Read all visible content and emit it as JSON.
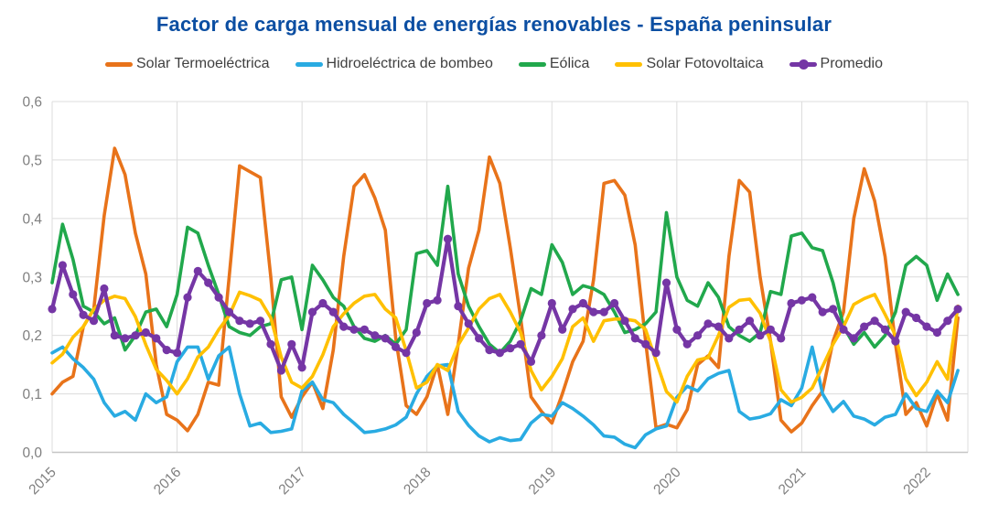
{
  "title": {
    "text": "Factor de carga mensual de energías renovables - España peninsular",
    "color": "#0B4EA2"
  },
  "axes": {
    "y_unit": "factor de carga (0-1, coma decimal)",
    "x_unit": "mes (enero 2015 - abril 2022)"
  },
  "chart_data": {
    "type": "line",
    "title": "Factor de carga mensual de energías renovables - España peninsular",
    "x_start": "2015-01",
    "x_end": "2022-04",
    "points_per_series": 88,
    "months_per_year": 12,
    "x_tick_labels": [
      "2015",
      "2016",
      "2017",
      "2018",
      "2019",
      "2020",
      "2021",
      "2022"
    ],
    "y_tick_labels": [
      "0,0",
      "0,1",
      "0,2",
      "0,3",
      "0,4",
      "0,5",
      "0,6"
    ],
    "ylim": [
      0,
      0.6
    ],
    "grid": true,
    "legend_position": "top",
    "series": [
      {
        "name": "Solar Termoeléctrica",
        "color": "#E8731A",
        "marker": "none",
        "values": [
          0.1,
          0.12,
          0.13,
          0.215,
          0.245,
          0.405,
          0.52,
          0.475,
          0.375,
          0.305,
          0.15,
          0.065,
          0.055,
          0.037,
          0.065,
          0.12,
          0.115,
          0.3,
          0.49,
          0.48,
          0.47,
          0.3,
          0.095,
          0.06,
          0.095,
          0.12,
          0.075,
          0.175,
          0.335,
          0.455,
          0.475,
          0.435,
          0.38,
          0.195,
          0.08,
          0.065,
          0.095,
          0.15,
          0.065,
          0.185,
          0.315,
          0.38,
          0.505,
          0.46,
          0.35,
          0.23,
          0.095,
          0.07,
          0.05,
          0.1,
          0.155,
          0.19,
          0.295,
          0.46,
          0.465,
          0.44,
          0.355,
          0.19,
          0.042,
          0.048,
          0.042,
          0.073,
          0.15,
          0.165,
          0.145,
          0.335,
          0.465,
          0.445,
          0.3,
          0.19,
          0.055,
          0.035,
          0.05,
          0.08,
          0.105,
          0.19,
          0.24,
          0.4,
          0.485,
          0.43,
          0.335,
          0.185,
          0.065,
          0.085,
          0.045,
          0.1,
          0.055,
          0.23
        ]
      },
      {
        "name": "Hidroeléctrica de bombeo",
        "color": "#29ABE2",
        "marker": "none",
        "values": [
          0.17,
          0.18,
          0.16,
          0.145,
          0.125,
          0.085,
          0.062,
          0.07,
          0.055,
          0.1,
          0.085,
          0.095,
          0.155,
          0.18,
          0.18,
          0.125,
          0.165,
          0.18,
          0.1,
          0.045,
          0.05,
          0.034,
          0.036,
          0.04,
          0.105,
          0.12,
          0.09,
          0.085,
          0.065,
          0.05,
          0.034,
          0.036,
          0.04,
          0.047,
          0.06,
          0.1,
          0.13,
          0.148,
          0.15,
          0.07,
          0.046,
          0.028,
          0.018,
          0.025,
          0.02,
          0.022,
          0.05,
          0.065,
          0.062,
          0.085,
          0.075,
          0.062,
          0.047,
          0.028,
          0.026,
          0.014,
          0.008,
          0.03,
          0.04,
          0.045,
          0.094,
          0.113,
          0.105,
          0.126,
          0.135,
          0.14,
          0.07,
          0.057,
          0.06,
          0.066,
          0.09,
          0.08,
          0.11,
          0.18,
          0.1,
          0.07,
          0.087,
          0.062,
          0.057,
          0.047,
          0.06,
          0.065,
          0.1,
          0.075,
          0.07,
          0.105,
          0.085,
          0.14
        ]
      },
      {
        "name": "Eólica",
        "color": "#21A84C",
        "marker": "none",
        "values": [
          0.29,
          0.39,
          0.33,
          0.25,
          0.24,
          0.22,
          0.23,
          0.175,
          0.2,
          0.24,
          0.245,
          0.215,
          0.27,
          0.385,
          0.375,
          0.32,
          0.27,
          0.215,
          0.205,
          0.2,
          0.215,
          0.22,
          0.295,
          0.3,
          0.21,
          0.32,
          0.295,
          0.265,
          0.25,
          0.215,
          0.195,
          0.19,
          0.2,
          0.185,
          0.21,
          0.34,
          0.345,
          0.32,
          0.455,
          0.305,
          0.25,
          0.215,
          0.185,
          0.17,
          0.19,
          0.225,
          0.28,
          0.27,
          0.355,
          0.325,
          0.27,
          0.285,
          0.28,
          0.27,
          0.24,
          0.205,
          0.21,
          0.22,
          0.24,
          0.41,
          0.3,
          0.26,
          0.25,
          0.29,
          0.265,
          0.215,
          0.2,
          0.19,
          0.205,
          0.275,
          0.27,
          0.37,
          0.375,
          0.35,
          0.345,
          0.29,
          0.215,
          0.185,
          0.205,
          0.18,
          0.2,
          0.24,
          0.32,
          0.335,
          0.32,
          0.26,
          0.305,
          0.27
        ]
      },
      {
        "name": "Solar Fotovoltaica",
        "color": "#FFC000",
        "marker": "none",
        "values": [
          0.153,
          0.168,
          0.197,
          0.215,
          0.245,
          0.26,
          0.267,
          0.263,
          0.232,
          0.184,
          0.142,
          0.123,
          0.1,
          0.126,
          0.163,
          0.18,
          0.21,
          0.234,
          0.274,
          0.268,
          0.26,
          0.23,
          0.163,
          0.12,
          0.11,
          0.13,
          0.167,
          0.215,
          0.237,
          0.255,
          0.267,
          0.27,
          0.245,
          0.23,
          0.174,
          0.11,
          0.12,
          0.15,
          0.14,
          0.184,
          0.213,
          0.245,
          0.263,
          0.27,
          0.24,
          0.205,
          0.14,
          0.107,
          0.13,
          0.16,
          0.215,
          0.23,
          0.19,
          0.225,
          0.228,
          0.228,
          0.225,
          0.21,
          0.157,
          0.104,
          0.086,
          0.13,
          0.158,
          0.162,
          0.2,
          0.248,
          0.26,
          0.262,
          0.238,
          0.19,
          0.107,
          0.086,
          0.094,
          0.11,
          0.147,
          0.185,
          0.215,
          0.253,
          0.263,
          0.27,
          0.236,
          0.2,
          0.126,
          0.097,
          0.12,
          0.155,
          0.125,
          0.25
        ]
      },
      {
        "name": "Promedio",
        "color": "#7536A5",
        "marker": "circle",
        "values": [
          0.245,
          0.32,
          0.27,
          0.235,
          0.225,
          0.28,
          0.2,
          0.195,
          0.2,
          0.205,
          0.195,
          0.175,
          0.17,
          0.265,
          0.31,
          0.29,
          0.265,
          0.24,
          0.225,
          0.22,
          0.225,
          0.185,
          0.14,
          0.185,
          0.145,
          0.24,
          0.255,
          0.24,
          0.215,
          0.21,
          0.21,
          0.2,
          0.195,
          0.18,
          0.17,
          0.205,
          0.255,
          0.26,
          0.365,
          0.25,
          0.22,
          0.195,
          0.175,
          0.17,
          0.178,
          0.185,
          0.155,
          0.2,
          0.255,
          0.21,
          0.245,
          0.255,
          0.24,
          0.24,
          0.255,
          0.225,
          0.195,
          0.185,
          0.17,
          0.29,
          0.21,
          0.185,
          0.2,
          0.22,
          0.215,
          0.195,
          0.21,
          0.225,
          0.2,
          0.21,
          0.195,
          0.255,
          0.26,
          0.265,
          0.24,
          0.245,
          0.21,
          0.195,
          0.215,
          0.225,
          0.21,
          0.19,
          0.24,
          0.23,
          0.215,
          0.205,
          0.225,
          0.245
        ]
      }
    ]
  }
}
